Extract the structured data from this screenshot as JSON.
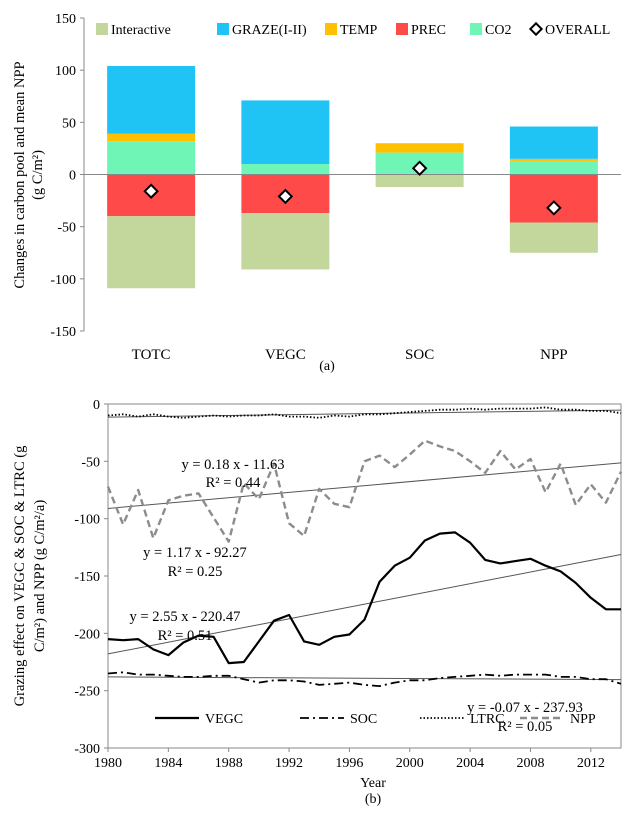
{
  "chart_data": [
    {
      "type": "bar",
      "stacked": true,
      "ylabel_lines": [
        "Changes in carbon pool and mean NPP",
        "(g C/m²)"
      ],
      "ylim": [
        -150,
        150
      ],
      "yticks": [
        -150,
        -100,
        -50,
        0,
        50,
        100,
        150
      ],
      "categories": [
        "TOTC",
        "VEGC",
        "SOC",
        "NPP"
      ],
      "caption": "(a)",
      "grid": false,
      "legend_position": "top",
      "series": [
        {
          "name": "Interactive",
          "color": "#c3d69b",
          "values": [
            -69,
            -54,
            -12,
            -29
          ]
        },
        {
          "name": "GRAZE(I-II)",
          "color": "#1fc3f4",
          "values": [
            65,
            61,
            0,
            31
          ]
        },
        {
          "name": "TEMP",
          "color": "#ffc000",
          "values": [
            7,
            0,
            9,
            2
          ]
        },
        {
          "name": "PREC",
          "color": "#ff4a4a",
          "values": [
            -40,
            -37,
            0,
            -46
          ]
        },
        {
          "name": "CO2",
          "color": "#6ff5b5",
          "values": [
            32,
            10,
            21,
            13
          ]
        }
      ],
      "overall": {
        "name": "OVERALL",
        "values": [
          -16,
          -21,
          6,
          -32
        ]
      }
    },
    {
      "type": "line",
      "ylabel_lines": [
        "Grazing effect on VEGC & SOC & LTRC (g",
        "C/m²) and NPP (g C/m²/a)"
      ],
      "xlabel": "Year",
      "caption": "(b)",
      "xlim": [
        1980,
        2014
      ],
      "xticks": [
        1980,
        1984,
        1988,
        1992,
        1996,
        2000,
        2004,
        2008,
        2012
      ],
      "ylim": [
        -300,
        0
      ],
      "yticks": [
        -300,
        -250,
        -200,
        -150,
        -100,
        -50,
        0
      ],
      "grid": false,
      "legend_position": "bottom",
      "x": [
        1980,
        1981,
        1982,
        1983,
        1984,
        1985,
        1986,
        1987,
        1988,
        1989,
        1990,
        1991,
        1992,
        1993,
        1994,
        1995,
        1996,
        1997,
        1998,
        1999,
        2000,
        2001,
        2002,
        2003,
        2004,
        2005,
        2006,
        2007,
        2008,
        2009,
        2010,
        2011,
        2012,
        2013,
        2014
      ],
      "series": [
        {
          "name": "VEGC",
          "style": "solid",
          "color": "#000000",
          "values": [
            -205,
            -206,
            -205,
            -214,
            -219,
            -208,
            -202,
            -203,
            -226,
            -225,
            -207,
            -189,
            -184,
            -207,
            -210,
            -203,
            -201,
            -188,
            -155,
            -141,
            -134,
            -119,
            -113,
            -112,
            -121,
            -136,
            -139,
            -137,
            -135,
            -141,
            -146,
            -156,
            -169,
            -179,
            -179
          ]
        },
        {
          "name": "SOC",
          "style": "dashdot",
          "color": "#000000",
          "values": [
            -235,
            -234,
            -236,
            -236,
            -237,
            -238,
            -238,
            -237,
            -237,
            -240,
            -243,
            -241,
            -241,
            -242,
            -245,
            -244,
            -243,
            -245,
            -246,
            -243,
            -241,
            -241,
            -239,
            -238,
            -237,
            -236,
            -237,
            -236,
            -236,
            -236,
            -238,
            -238,
            -240,
            -240,
            -244
          ]
        },
        {
          "name": "LTRC",
          "style": "dotted",
          "color": "#000000",
          "values": [
            -10,
            -9,
            -11,
            -9,
            -11,
            -12,
            -11,
            -10,
            -11,
            -10,
            -10,
            -9,
            -11,
            -11,
            -12,
            -10,
            -11,
            -9,
            -9,
            -8,
            -7,
            -6,
            -5,
            -5,
            -4,
            -5,
            -4,
            -4,
            -4,
            -3,
            -5,
            -5,
            -6,
            -6,
            -8
          ]
        },
        {
          "name": "NPP",
          "style": "dashed",
          "color": "#8c8c8c",
          "values": [
            -72,
            -105,
            -75,
            -117,
            -84,
            -80,
            -78,
            -99,
            -120,
            -69,
            -83,
            -52,
            -104,
            -115,
            -74,
            -87,
            -90,
            -50,
            -45,
            -55,
            -44,
            -32,
            -37,
            -41,
            -50,
            -60,
            -41,
            -57,
            -48,
            -77,
            -52,
            -88,
            -70,
            -86,
            -59
          ]
        }
      ],
      "trendlines": [
        {
          "series": "LTRC",
          "slope": 0.18,
          "intercept": -11.63
        },
        {
          "series": "NPP",
          "slope": 1.17,
          "intercept": -92.27
        },
        {
          "series": "VEGC",
          "slope": 2.55,
          "intercept": -220.47
        },
        {
          "series": "SOC",
          "slope": -0.07,
          "intercept": -237.93
        }
      ],
      "annotations": [
        {
          "eq": "y = 0.18 x - 11.63",
          "r2": "R² = 0.44"
        },
        {
          "eq": "y = 1.17 x - 92.27",
          "r2": "R² = 0.25"
        },
        {
          "eq": "y = 2.55 x - 220.47",
          "r2": "R² = 0.51"
        },
        {
          "eq": "y = -0.07 x - 237.93",
          "r2": "R² = 0.05"
        }
      ]
    }
  ]
}
